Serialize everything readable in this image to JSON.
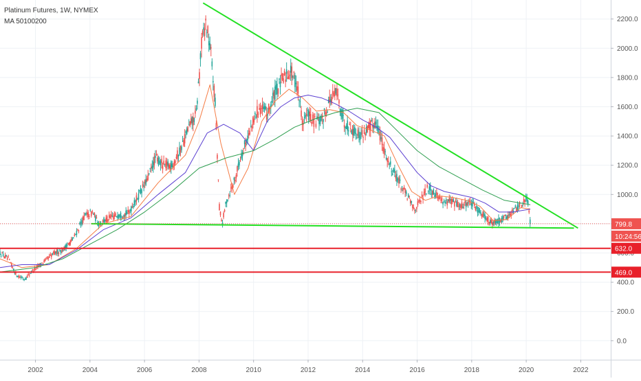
{
  "legend": {
    "title": "Platinum Futures, 1W, NYMEX",
    "indicator": "MA 50100200"
  },
  "price_labels": {
    "last": "799.8",
    "countdown": "10:24:56",
    "level1": "632.0",
    "level2": "469.0"
  },
  "colors": {
    "up": "#26a69a",
    "down": "#ef5350",
    "ma50": "#f57c45",
    "ma100": "#5b3fd1",
    "ma200": "#2e9e4f",
    "trend": "#22e022",
    "support": "#e8202a",
    "grid": "#eef1f5"
  },
  "chart_data": {
    "type": "line",
    "title": "Platinum Futures, 1W, NYMEX",
    "xlabel": "",
    "ylabel": "",
    "xlim": [
      2000.7,
      2023.1
    ],
    "ylim": [
      -130,
      2330
    ],
    "x_ticks": [
      "2002",
      "2004",
      "2006",
      "2008",
      "2010",
      "2012",
      "2014",
      "2016",
      "2018",
      "2020",
      "2022"
    ],
    "y_ticks": [
      "0.0",
      "200.0",
      "400.0",
      "600.0",
      "800.0",
      "1000.0",
      "1200.0",
      "1400.0",
      "1600.0",
      "1800.0",
      "2000.0",
      "2200.0"
    ],
    "grid": true,
    "series": [
      {
        "name": "",
        "kind": "price",
        "x": [
          2000.7,
          2001.0,
          2001.3,
          2001.6,
          2001.9,
          2002.3,
          2002.7,
          2003.0,
          2003.4,
          2003.8,
          2004.1,
          2004.3,
          2004.6,
          2005.0,
          2005.4,
          2005.8,
          2006.1,
          2006.4,
          2006.7,
          2007.0,
          2007.3,
          2007.6,
          2007.9,
          2008.1,
          2008.25,
          2008.45,
          2008.6,
          2008.75,
          2008.85,
          2009.0,
          2009.3,
          2009.6,
          2009.9,
          2010.2,
          2010.5,
          2010.8,
          2011.1,
          2011.35,
          2011.6,
          2011.8,
          2012.0,
          2012.2,
          2012.5,
          2012.8,
          2013.05,
          2013.3,
          2013.6,
          2013.9,
          2014.2,
          2014.5,
          2014.8,
          2015.0,
          2015.3,
          2015.6,
          2015.9,
          2016.1,
          2016.4,
          2016.7,
          2017.0,
          2017.3,
          2017.6,
          2017.9,
          2018.2,
          2018.5,
          2018.75,
          2019.0,
          2019.3,
          2019.6,
          2019.9,
          2020.05,
          2020.15
        ],
        "y": [
          600,
          560,
          450,
          420,
          480,
          540,
          600,
          620,
          700,
          850,
          880,
          800,
          830,
          860,
          870,
          1000,
          1100,
          1250,
          1200,
          1200,
          1300,
          1450,
          1550,
          2050,
          2180,
          1950,
          1600,
          900,
          800,
          950,
          1100,
          1300,
          1450,
          1600,
          1550,
          1700,
          1800,
          1850,
          1750,
          1500,
          1550,
          1500,
          1500,
          1650,
          1700,
          1500,
          1450,
          1400,
          1450,
          1500,
          1300,
          1200,
          1100,
          1000,
          900,
          950,
          1050,
          1000,
          950,
          950,
          920,
          950,
          900,
          850,
          800,
          820,
          850,
          900,
          950,
          980,
          800
        ]
      },
      {
        "name": "",
        "kind": "ma50",
        "x": [
          2000.7,
          2001.5,
          2002.5,
          2003.5,
          2004.5,
          2005.5,
          2006.5,
          2007.5,
          2008.0,
          2008.4,
          2008.8,
          2009.3,
          2009.8,
          2010.3,
          2010.8,
          2011.3,
          2011.8,
          2012.3,
          2012.8,
          2013.3,
          2013.8,
          2014.3,
          2014.8,
          2015.3,
          2015.8,
          2016.3,
          2016.8,
          2017.3,
          2017.8,
          2018.3,
          2018.8,
          2019.3,
          2019.8,
          2020.15
        ],
        "y": [
          560,
          500,
          520,
          630,
          800,
          850,
          1080,
          1270,
          1500,
          1750,
          1350,
          1000,
          1180,
          1500,
          1640,
          1720,
          1660,
          1570,
          1580,
          1560,
          1470,
          1440,
          1400,
          1200,
          1020,
          960,
          990,
          980,
          960,
          920,
          820,
          830,
          910,
          900
        ]
      },
      {
        "name": "",
        "kind": "ma100",
        "x": [
          2000.7,
          2001.5,
          2002.5,
          2003.5,
          2004.5,
          2005.5,
          2006.5,
          2007.5,
          2008.3,
          2008.9,
          2009.5,
          2010.0,
          2010.5,
          2011.0,
          2011.5,
          2012.0,
          2012.5,
          2013.0,
          2013.5,
          2014.0,
          2014.5,
          2015.0,
          2015.5,
          2016.0,
          2016.5,
          2017.0,
          2017.5,
          2018.0,
          2018.5,
          2019.0,
          2019.5,
          2020.15
        ],
        "y": [
          500,
          520,
          520,
          620,
          760,
          840,
          1000,
          1150,
          1420,
          1480,
          1420,
          1300,
          1500,
          1600,
          1660,
          1680,
          1660,
          1620,
          1570,
          1510,
          1460,
          1390,
          1270,
          1150,
          1060,
          1020,
          1000,
          980,
          940,
          880,
          880,
          900
        ]
      },
      {
        "name": "",
        "kind": "ma200",
        "x": [
          2000.7,
          2002.0,
          2003.0,
          2004.0,
          2005.0,
          2006.0,
          2007.0,
          2008.0,
          2009.0,
          2010.0,
          2010.8,
          2011.5,
          2012.3,
          2013.0,
          2013.8,
          2014.6,
          2015.3,
          2016.0,
          2016.8,
          2017.6,
          2018.4,
          2019.2,
          2020.15
        ],
        "y": [
          470,
          500,
          560,
          660,
          760,
          880,
          1020,
          1180,
          1250,
          1300,
          1380,
          1460,
          1520,
          1560,
          1590,
          1560,
          1430,
          1300,
          1190,
          1110,
          1030,
          960,
          930
        ]
      },
      {
        "name": "",
        "kind": "trendline",
        "x": [
          2008.15,
          2021.9
        ],
        "y": [
          2310,
          770
        ]
      },
      {
        "name": "",
        "kind": "trendline",
        "x": [
          2004.05,
          2021.75
        ],
        "y": [
          800,
          770
        ]
      },
      {
        "name": "",
        "kind": "support",
        "x": [
          2000.7,
          2023.1
        ],
        "y": [
          632,
          632
        ]
      },
      {
        "name": "",
        "kind": "support",
        "x": [
          2000.7,
          2023.1
        ],
        "y": [
          469,
          469
        ]
      },
      {
        "name": "",
        "kind": "last-price",
        "x": [
          2000.7,
          2023.1
        ],
        "y": [
          799.8,
          799.8
        ]
      }
    ]
  }
}
